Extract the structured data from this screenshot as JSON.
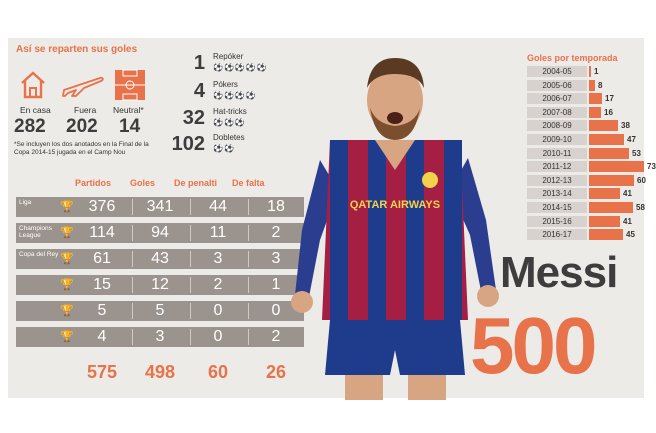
{
  "distribution": {
    "title": "Así se reparten sus goles",
    "venues": [
      {
        "icon": "house-icon",
        "label": "En casa",
        "value": "282"
      },
      {
        "icon": "airplane-icon",
        "label": "Fuera",
        "value": "202"
      },
      {
        "icon": "pitch-icon",
        "label": "Neutral*",
        "value": "14"
      }
    ],
    "note": "*Se incluyen los dos anotados en la Final de la Copa 2014-15 jugada en el Camp Nou"
  },
  "tricks": [
    {
      "value": "1",
      "label": "Repóker",
      "balls": "⚽⚽⚽⚽⚽"
    },
    {
      "value": "4",
      "label": "Pókers",
      "balls": "⚽⚽⚽⚽"
    },
    {
      "value": "32",
      "label": "Hat-tricks",
      "balls": "⚽⚽⚽"
    },
    {
      "value": "102",
      "label": "Dobletes",
      "balls": "⚽⚽"
    }
  ],
  "table": {
    "headers": [
      "Partidos",
      "Goles",
      "De penalti",
      "De falta"
    ],
    "rows": [
      {
        "label": "Liga",
        "icon": "trophy-icon",
        "values": [
          "376",
          "341",
          "44",
          "18"
        ]
      },
      {
        "label": "Champions League",
        "icon": "trophy-icon",
        "values": [
          "114",
          "94",
          "11",
          "2"
        ]
      },
      {
        "label": "Copa del Rey",
        "icon": "trophy-icon",
        "values": [
          "61",
          "43",
          "3",
          "3"
        ]
      },
      {
        "label": "",
        "icon": "trophy-icon",
        "values": [
          "15",
          "12",
          "2",
          "1"
        ]
      },
      {
        "label": "",
        "icon": "trophy-icon",
        "values": [
          "5",
          "5",
          "0",
          "0"
        ]
      },
      {
        "label": "",
        "icon": "trophy-icon",
        "values": [
          "4",
          "3",
          "0",
          "2"
        ]
      }
    ],
    "totals": [
      "575",
      "498",
      "60",
      "26"
    ]
  },
  "seasons": {
    "title": "Goles por temporada",
    "rows": [
      {
        "season": "2004-05",
        "goals": "1"
      },
      {
        "season": "2005-06",
        "goals": "8"
      },
      {
        "season": "2006-07",
        "goals": "17"
      },
      {
        "season": "2007-08",
        "goals": "16"
      },
      {
        "season": "2008-09",
        "goals": "38"
      },
      {
        "season": "2009-10",
        "goals": "47"
      },
      {
        "season": "2010-11",
        "goals": "53"
      },
      {
        "season": "2011-12",
        "goals": "73"
      },
      {
        "season": "2012-13",
        "goals": "60"
      },
      {
        "season": "2013-14",
        "goals": "41"
      },
      {
        "season": "2014-15",
        "goals": "58"
      },
      {
        "season": "2015-16",
        "goals": "41"
      },
      {
        "season": "2016-17",
        "goals": "45"
      }
    ]
  },
  "headline": {
    "name": "Messi",
    "number": "500"
  },
  "jersey": {
    "sponsor": "QATAR AIRWAYS"
  },
  "colors": {
    "accent": "#e8724a",
    "dark": "#3d3d3d",
    "panel": "#ecebe7",
    "row": "#9a938e"
  }
}
